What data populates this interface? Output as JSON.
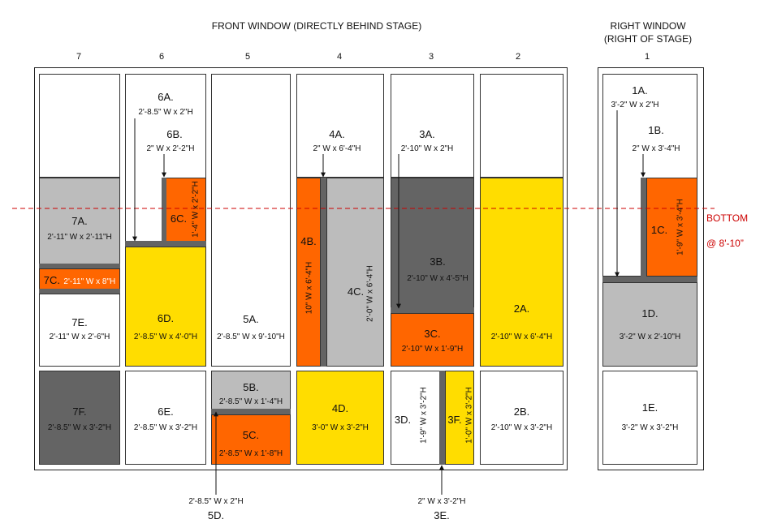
{
  "titles": {
    "front": "FRONT WINDOW (DIRECTLY BEHIND STAGE)",
    "right_line1": "RIGHT WINDOW",
    "right_line2": "(RIGHT OF STAGE)"
  },
  "columns": [
    "7",
    "6",
    "5",
    "4",
    "3",
    "2",
    "1"
  ],
  "bottom_line": {
    "label": "BOTTOM",
    "height": "@ 8'-10”"
  },
  "colors": {
    "orange": "#ff6600",
    "yellow": "#ffdd00",
    "light_gray": "#bcbcbc",
    "dark_gray": "#646464",
    "red_line": "#cc0000"
  },
  "panels": {
    "p7A": {
      "id": "7A.",
      "dim": "2'-11\" W x 2'-11\"H"
    },
    "p7C": {
      "id": "7C.",
      "dim": "2'-11\" W x 8\"H"
    },
    "p7E": {
      "id": "7E.",
      "dim": "2'-11\" W x 2'-6\"H"
    },
    "p7F": {
      "id": "7F.",
      "dim": "2'-8.5\" W x 3'-2\"H"
    },
    "p6A": {
      "id": "6A.",
      "dim": "2'-8.5\" W x 2\"H"
    },
    "p6B": {
      "id": "6B.",
      "dim": "2\" W x 2'-2\"H"
    },
    "p6C": {
      "id": "6C.",
      "dim": "1'-4\" W x 2'-2\"H"
    },
    "p6D": {
      "id": "6D.",
      "dim": "2'-8.5\" W x 4'-0\"H"
    },
    "p6E": {
      "id": "6E.",
      "dim": "2'-8.5\" W x 3'-2\"H"
    },
    "p5A": {
      "id": "5A.",
      "dim": "2'-8.5\" W x 9'-10\"H"
    },
    "p5B": {
      "id": "5B.",
      "dim": "2'-8.5\" W x 1'-4\"H"
    },
    "p5C": {
      "id": "5C.",
      "dim": "2'-8.5\" W x 1'-8\"H"
    },
    "p5D": {
      "id": "5D.",
      "dim": "2'-8.5\" W x 2\"H"
    },
    "p4A": {
      "id": "4A.",
      "dim": "2\" W x 6'-4\"H"
    },
    "p4B": {
      "id": "4B.",
      "dim": "10\" W x 6'-4\"H"
    },
    "p4C": {
      "id": "4C.",
      "dim": "2'-0\" W x 6'-4\"H"
    },
    "p4D": {
      "id": "4D.",
      "dim": "3'-0\" W x 3'-2\"H"
    },
    "p3A": {
      "id": "3A.",
      "dim": "2'-10\" W x 2\"H"
    },
    "p3B": {
      "id": "3B.",
      "dim": "2'-10\" W x 4'-5\"H"
    },
    "p3C": {
      "id": "3C.",
      "dim": "2'-10\" W x 1'-9\"H"
    },
    "p3D": {
      "id": "3D.",
      "dim": "1'-9\" W x 3'-2\"H"
    },
    "p3E": {
      "id": "3E.",
      "dim": "2\" W x 3'-2\"H"
    },
    "p3F": {
      "id": "3F.",
      "dim": "1'-0\" W x 3'-2\"H"
    },
    "p2A": {
      "id": "2A.",
      "dim": "2'-10\" W x 6'-4\"H"
    },
    "p2B": {
      "id": "2B.",
      "dim": "2'-10\" W x 3'-2\"H"
    },
    "p1A": {
      "id": "1A.",
      "dim": "3'-2\" W x 2\"H"
    },
    "p1B": {
      "id": "1B.",
      "dim": "2\" W x 3'-4\"H"
    },
    "p1C": {
      "id": "1C.",
      "dim": "1'-9\" W x 3'-4\"H"
    },
    "p1D": {
      "id": "1D.",
      "dim": "3'-2\" W x 2'-10\"H"
    },
    "p1E": {
      "id": "1E.",
      "dim": "3'-2\" W x 3'-2\"H"
    }
  }
}
